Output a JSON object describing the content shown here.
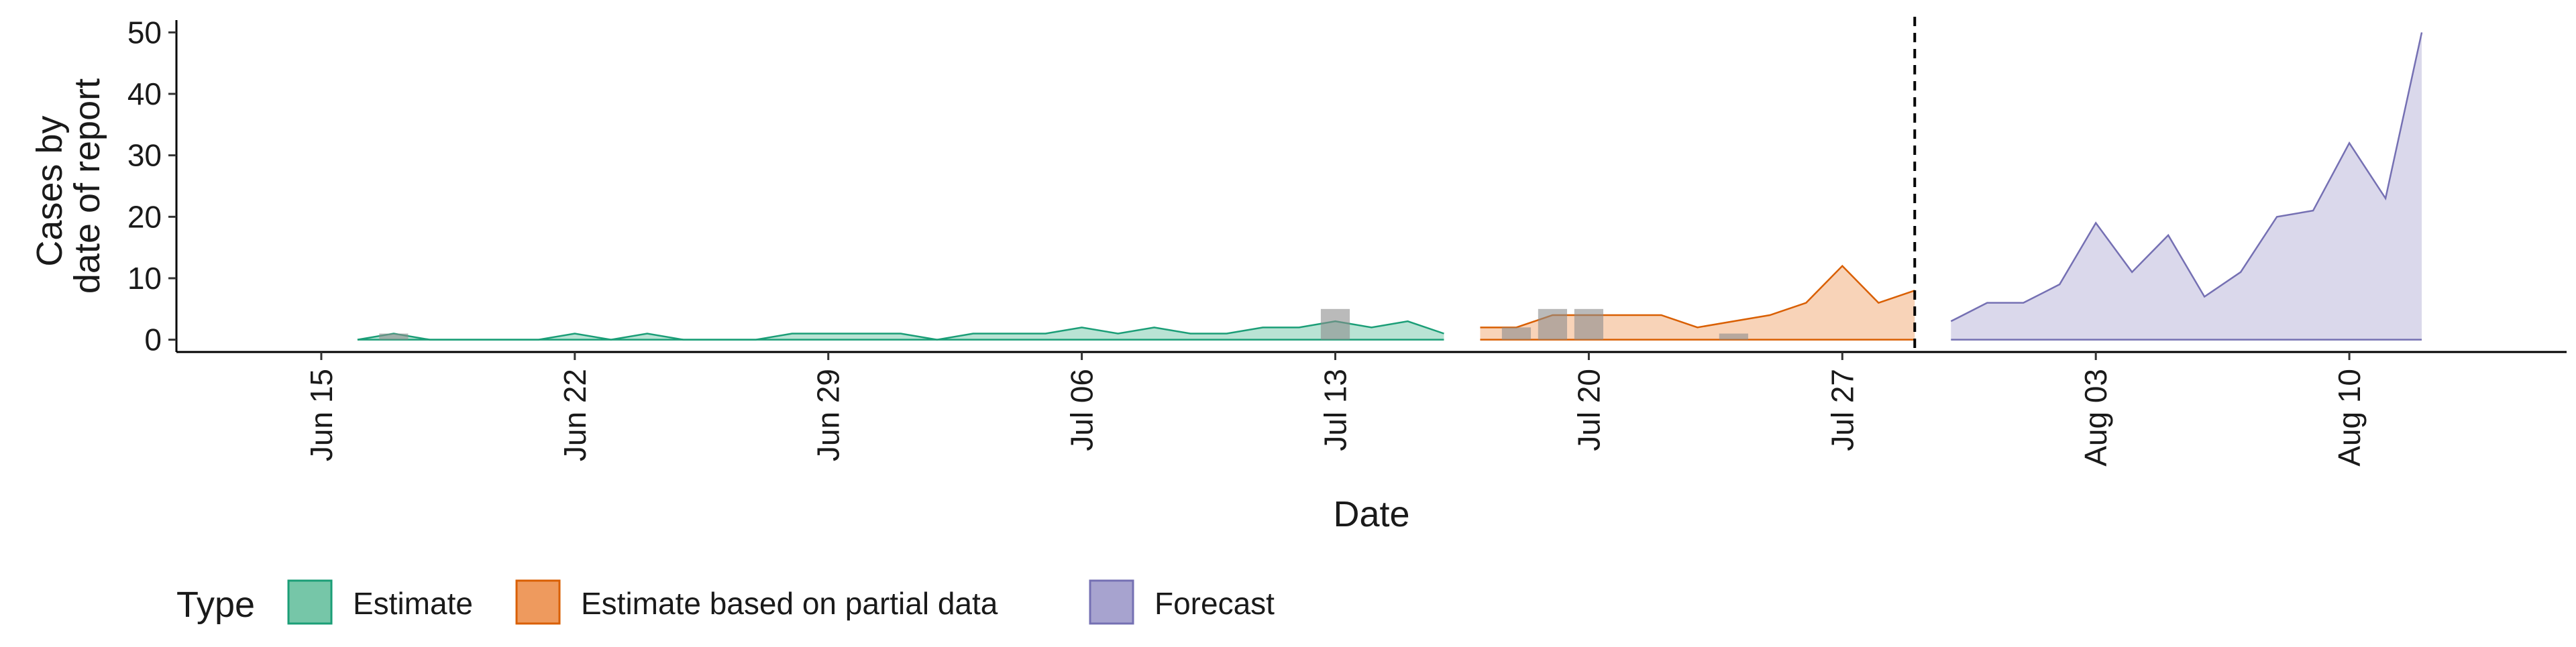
{
  "chart_data": {
    "type": "area",
    "xlabel": "Date",
    "ylabel": [
      "Cases by",
      "date of report"
    ],
    "xlim": [
      "2020-06-11",
      "2020-08-16"
    ],
    "ylim": [
      -2,
      52
    ],
    "y_ticks": [
      0,
      10,
      20,
      30,
      40,
      50
    ],
    "x_ticks": [
      {
        "date": "2020-06-15",
        "label": "Jun 15"
      },
      {
        "date": "2020-06-22",
        "label": "Jun 22"
      },
      {
        "date": "2020-06-29",
        "label": "Jun 29"
      },
      {
        "date": "2020-07-06",
        "label": "Jul 06"
      },
      {
        "date": "2020-07-13",
        "label": "Jul 13"
      },
      {
        "date": "2020-07-20",
        "label": "Jul 20"
      },
      {
        "date": "2020-07-27",
        "label": "Jul 27"
      },
      {
        "date": "2020-08-03",
        "label": "Aug 03"
      },
      {
        "date": "2020-08-10",
        "label": "Aug 10"
      }
    ],
    "forecast_date": "2020-07-29",
    "grid": false,
    "legend": {
      "title": "Type",
      "position": "bottom",
      "items": [
        {
          "label": "Estimate",
          "fill": "#76c6a8",
          "stroke": "#1b9e77"
        },
        {
          "label": "Estimate based on partial data",
          "fill": "#ee9a5e",
          "stroke": "#d95f02"
        },
        {
          "label": "Forecast",
          "fill": "#a7a3cf",
          "stroke": "#7570b3"
        }
      ]
    },
    "series": [
      {
        "name": "Estimate",
        "fill": "#b9e3d4",
        "stroke": "#1b9e77",
        "points": [
          {
            "date": "2020-06-16",
            "y": 0
          },
          {
            "date": "2020-06-17",
            "y": 1
          },
          {
            "date": "2020-06-18",
            "y": 0
          },
          {
            "date": "2020-06-19",
            "y": 0
          },
          {
            "date": "2020-06-20",
            "y": 0
          },
          {
            "date": "2020-06-21",
            "y": 0
          },
          {
            "date": "2020-06-22",
            "y": 1
          },
          {
            "date": "2020-06-23",
            "y": 0
          },
          {
            "date": "2020-06-24",
            "y": 1
          },
          {
            "date": "2020-06-25",
            "y": 0
          },
          {
            "date": "2020-06-26",
            "y": 0
          },
          {
            "date": "2020-06-27",
            "y": 0
          },
          {
            "date": "2020-06-28",
            "y": 1
          },
          {
            "date": "2020-06-29",
            "y": 1
          },
          {
            "date": "2020-06-30",
            "y": 1
          },
          {
            "date": "2020-07-01",
            "y": 1
          },
          {
            "date": "2020-07-02",
            "y": 0
          },
          {
            "date": "2020-07-03",
            "y": 1
          },
          {
            "date": "2020-07-04",
            "y": 1
          },
          {
            "date": "2020-07-05",
            "y": 1
          },
          {
            "date": "2020-07-06",
            "y": 2
          },
          {
            "date": "2020-07-07",
            "y": 1
          },
          {
            "date": "2020-07-08",
            "y": 2
          },
          {
            "date": "2020-07-09",
            "y": 1
          },
          {
            "date": "2020-07-10",
            "y": 1
          },
          {
            "date": "2020-07-11",
            "y": 2
          },
          {
            "date": "2020-07-12",
            "y": 2
          },
          {
            "date": "2020-07-13",
            "y": 3
          },
          {
            "date": "2020-07-14",
            "y": 2
          },
          {
            "date": "2020-07-15",
            "y": 3
          },
          {
            "date": "2020-07-16",
            "y": 1
          }
        ]
      },
      {
        "name": "Estimate based on partial data",
        "fill": "#f8d3b8",
        "stroke": "#d95f02",
        "points": [
          {
            "date": "2020-07-17",
            "y": 2
          },
          {
            "date": "2020-07-18",
            "y": 2
          },
          {
            "date": "2020-07-19",
            "y": 4
          },
          {
            "date": "2020-07-20",
            "y": 4
          },
          {
            "date": "2020-07-21",
            "y": 4
          },
          {
            "date": "2020-07-22",
            "y": 4
          },
          {
            "date": "2020-07-23",
            "y": 2
          },
          {
            "date": "2020-07-24",
            "y": 3
          },
          {
            "date": "2020-07-25",
            "y": 4
          },
          {
            "date": "2020-07-26",
            "y": 6
          },
          {
            "date": "2020-07-27",
            "y": 12
          },
          {
            "date": "2020-07-28",
            "y": 6
          },
          {
            "date": "2020-07-29",
            "y": 8
          }
        ]
      },
      {
        "name": "Forecast",
        "fill": "#dad8eb",
        "stroke": "#7570b3",
        "points": [
          {
            "date": "2020-07-30",
            "y": 3
          },
          {
            "date": "2020-07-31",
            "y": 6
          },
          {
            "date": "2020-08-01",
            "y": 6
          },
          {
            "date": "2020-08-02",
            "y": 9
          },
          {
            "date": "2020-08-03",
            "y": 19
          },
          {
            "date": "2020-08-04",
            "y": 11
          },
          {
            "date": "2020-08-05",
            "y": 17
          },
          {
            "date": "2020-08-06",
            "y": 7
          },
          {
            "date": "2020-08-07",
            "y": 11
          },
          {
            "date": "2020-08-08",
            "y": 20
          },
          {
            "date": "2020-08-09",
            "y": 21
          },
          {
            "date": "2020-08-10",
            "y": 32
          },
          {
            "date": "2020-08-11",
            "y": 23
          },
          {
            "date": "2020-08-12",
            "y": 50
          }
        ]
      }
    ],
    "reported_cases": {
      "color": "#8c8c8c",
      "bars": [
        {
          "date": "2020-06-17",
          "y": 1
        },
        {
          "date": "2020-07-13",
          "y": 5
        },
        {
          "date": "2020-07-18",
          "y": 2
        },
        {
          "date": "2020-07-19",
          "y": 5
        },
        {
          "date": "2020-07-20",
          "y": 5
        },
        {
          "date": "2020-07-24",
          "y": 1
        }
      ]
    }
  }
}
